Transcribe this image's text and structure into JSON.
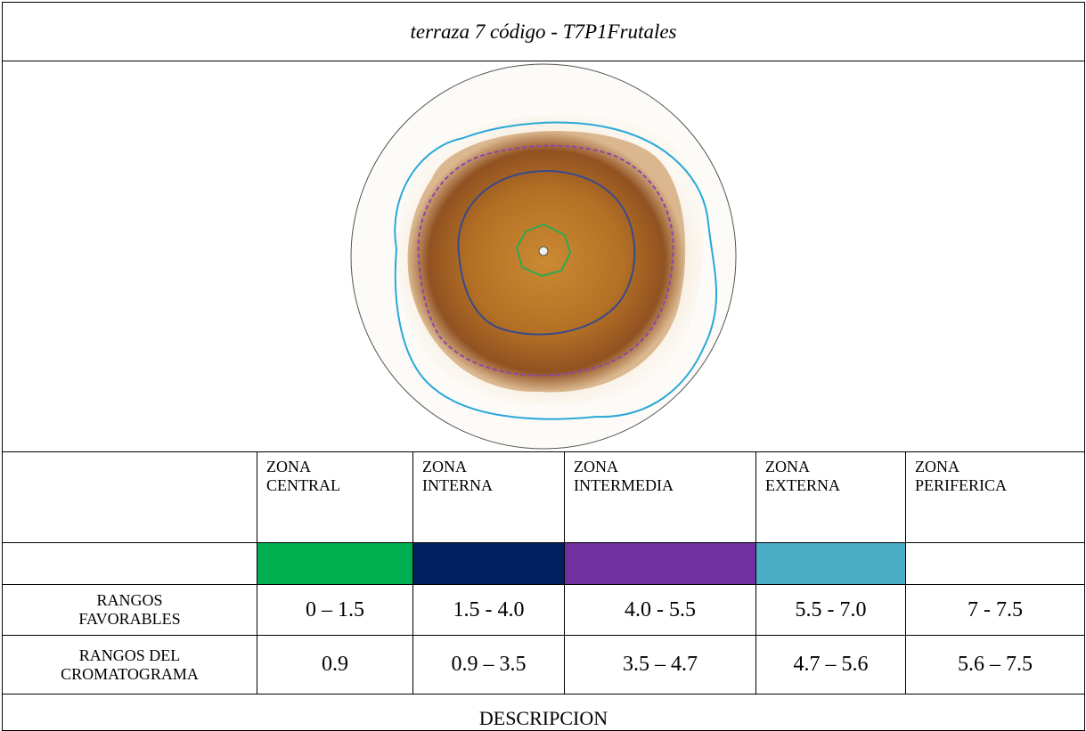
{
  "header": {
    "title": "terraza 7 código - T7P1Frutales"
  },
  "table": {
    "zones": [
      {
        "name": "ZONA CENTRAL",
        "color": "#00b050"
      },
      {
        "name": "ZONA INTERNA",
        "color": "#002060"
      },
      {
        "name": "ZONA INTERMEDIA",
        "color": "#7030a0"
      },
      {
        "name": "ZONA EXTERNA",
        "color": "#4bacc6"
      },
      {
        "name": "ZONA PERIFERICA",
        "color": "#ffffff"
      }
    ],
    "rows": [
      {
        "label": "RANGOS FAVORABLES",
        "values": [
          "0 – 1.5",
          "1.5 - 4.0",
          "4.0 - 5.5",
          "5.5 - 7.0",
          "7 - 7.5"
        ]
      },
      {
        "label": "RANGOS DEL CROMATOGRAMA",
        "values": [
          "0.9",
          "0.9 – 3.5",
          "3.5 – 4.7",
          "4.7 – 5.6",
          "5.6 – 7.5"
        ]
      }
    ],
    "description": "DESCRIPCION"
  }
}
